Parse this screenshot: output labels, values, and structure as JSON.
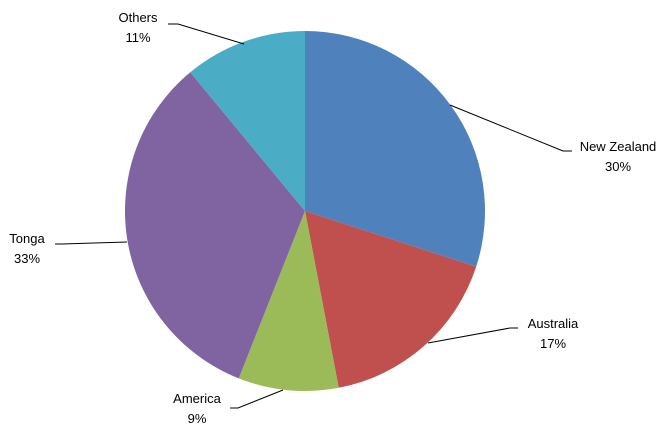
{
  "chart_data": {
    "type": "pie",
    "categories": [
      "New Zealand",
      "Australia",
      "America",
      "Tonga",
      "Others"
    ],
    "values": [
      30,
      17,
      9,
      33,
      11
    ],
    "value_labels": [
      "30%",
      "17%",
      "9%",
      "33%",
      "11%"
    ],
    "colors": [
      "#4f81bd",
      "#c0504d",
      "#9bbb59",
      "#8064a2",
      "#4bacc6"
    ],
    "start": "12 o'clock, clockwise",
    "legend": "none (labels with leader lines)"
  }
}
